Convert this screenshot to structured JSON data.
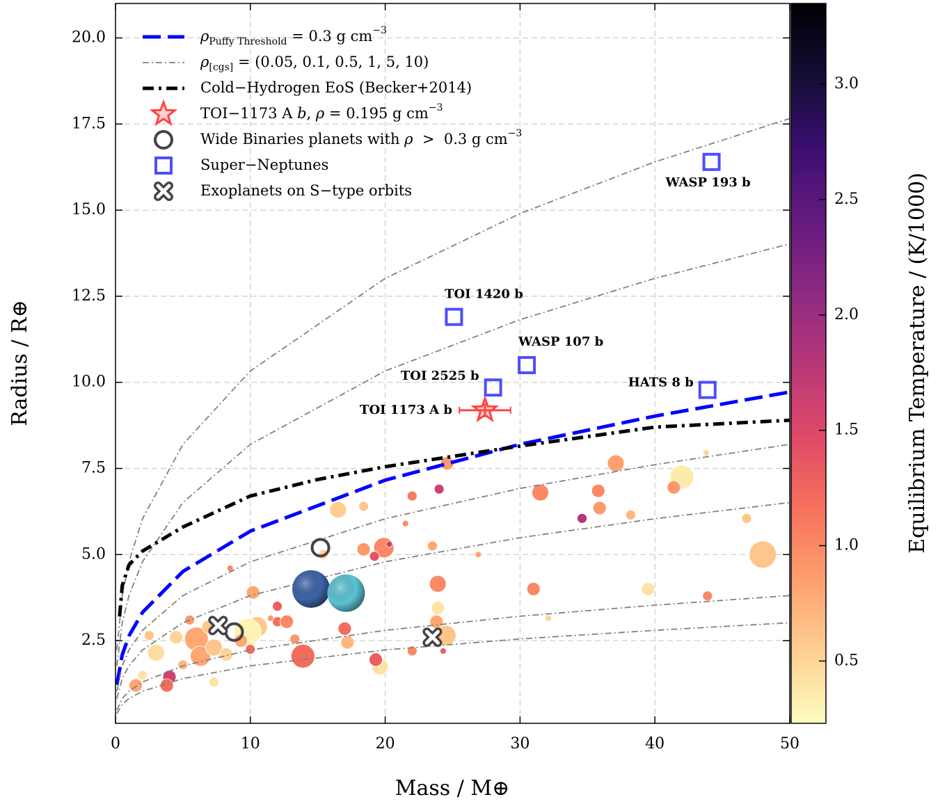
{
  "chart_data": {
    "type": "scatter",
    "xlabel": "Mass / M⊕",
    "ylabel": "Radius / R⊕",
    "xlim": [
      0,
      50
    ],
    "ylim": [
      0.1,
      21
    ],
    "xticks": [
      0,
      10,
      20,
      30,
      40,
      50
    ],
    "yticks": [
      2.5,
      {
        "value": 5,
        "label": "5.0"
      },
      7.5,
      {
        "value": 10,
        "label": "10.0"
      },
      12.5,
      {
        "value": 15,
        "label": "15.0"
      },
      17.5,
      {
        "value": 20,
        "label": "20.0"
      }
    ],
    "grid": true,
    "colorbar": {
      "label": "Equilibrium Temperature / (K/1000)",
      "lim": [
        0.23,
        3.35
      ],
      "ticks": [
        0.5,
        {
          "value": 1,
          "label": "1.0"
        },
        1.5,
        {
          "value": 2,
          "label": "2.0"
        },
        2.5,
        {
          "value": 3,
          "label": "3.0"
        }
      ],
      "colormap": [
        "#fcfdbf",
        "#fecf92",
        "#fe9f6d",
        "#f7705c",
        "#de4968",
        "#b73779",
        "#8c2981",
        "#641a80",
        "#3b0f70",
        "#140e36",
        "#000004"
      ]
    },
    "population": {
      "x": [
        24.6,
        37.1,
        42,
        41.4,
        24,
        22,
        31.5,
        35.8,
        16.5,
        18.4,
        35.9,
        34.6,
        38.2,
        46.8,
        19.9,
        18.4,
        19.2,
        23.5,
        26.9,
        48,
        15.4,
        23.9,
        10.2,
        23.9,
        12,
        31,
        39.5,
        43.9,
        12,
        10.5,
        9.8,
        6.0,
        6.3,
        7.3,
        3.0,
        4.0,
        3.8,
        1.5,
        4.5,
        2.5,
        13.9,
        17.0,
        17.2,
        19.6,
        19.3,
        22.0,
        24.5,
        23.8,
        12.7,
        13.3,
        10.0,
        8.2,
        5.0,
        7.3,
        32.1,
        21.5,
        20.3,
        24.3,
        6.9,
        2.0,
        5.5,
        8.5,
        11.5,
        9.3,
        43.8
      ],
      "values": [
        7.65,
        7.65,
        7.25,
        6.95,
        6.9,
        6.7,
        6.8,
        6.85,
        6.3,
        6.4,
        6.35,
        6.05,
        6.15,
        6.05,
        5.2,
        5.15,
        4.95,
        5.25,
        5.0,
        5.0,
        5.0,
        4.15,
        3.9,
        3.45,
        3.5,
        4.0,
        4.0,
        3.8,
        3.05,
        2.9,
        2.75,
        2.55,
        2.05,
        2.3,
        2.15,
        1.45,
        1.2,
        1.2,
        2.6,
        2.65,
        2.05,
        2.85,
        2.45,
        1.75,
        1.95,
        2.2,
        2.65,
        3.05,
        3.05,
        2.55,
        2.25,
        2.1,
        1.8,
        1.3,
        3.15,
        5.9,
        5.3,
        2.2,
        2.9,
        1.5,
        3.1,
        4.6,
        3.15,
        2.5,
        7.95
      ],
      "teq": [
        0.9,
        0.85,
        0.35,
        0.9,
        1.6,
        1.1,
        1.0,
        1.0,
        0.55,
        0.6,
        0.9,
        1.8,
        0.7,
        0.6,
        1.0,
        0.9,
        1.4,
        0.8,
        0.8,
        0.6,
        0.5,
        1.0,
        0.8,
        0.4,
        1.3,
        1.0,
        0.4,
        1.0,
        1.2,
        0.6,
        0.3,
        0.8,
        0.8,
        0.6,
        0.45,
        1.6,
        1.2,
        0.8,
        0.5,
        0.6,
        1.2,
        1.2,
        0.7,
        0.4,
        1.3,
        1.0,
        0.6,
        0.8,
        1.0,
        0.9,
        1.2,
        0.5,
        0.7,
        0.4,
        0.5,
        1.0,
        1.6,
        1.3,
        0.6,
        0.4,
        0.9,
        1.0,
        0.9,
        0.8,
        0.5
      ],
      "sizes": [
        3,
        4,
        6,
        3,
        2,
        2,
        4,
        3,
        4,
        2,
        3,
        2,
        2,
        2,
        5,
        3,
        2,
        2,
        1,
        7,
        2,
        4,
        3,
        3,
        2,
        3,
        3,
        2,
        2,
        5,
        7,
        6,
        5,
        4,
        4,
        3,
        3,
        3,
        3,
        2,
        6,
        3,
        3,
        4,
        3,
        2,
        5,
        3,
        3,
        2,
        2,
        3,
        2,
        2,
        1,
        1,
        1,
        1,
        3,
        2,
        2,
        1,
        1,
        3,
        1
      ]
    },
    "solar_system": {
      "x": [
        14.5,
        17.1
      ],
      "values": [
        4.0,
        3.88
      ],
      "colors": [
        "#3d64a8",
        "#5cc3d4"
      ]
    },
    "series": [
      {
        "kind": "line",
        "style": "dashed",
        "color": "#0000ff",
        "label_parts": [
          {
            "text": "ρ",
            "style": "italic"
          },
          {
            "text": "Puffy Threshold",
            "style": "sub"
          },
          {
            "text": " = 0.3 g cm"
          },
          {
            "text": "−3",
            "style": "sup"
          }
        ],
        "x": [
          0.1,
          0.5,
          1,
          2,
          5,
          10,
          20,
          30,
          40,
          50
        ],
        "values": [
          1.22,
          2.09,
          2.64,
          3.32,
          4.51,
          5.68,
          7.16,
          8.2,
          9.02,
          9.72
        ]
      },
      {
        "kind": "line-group",
        "style": "dashdot",
        "color": "#808080",
        "label_parts": [
          {
            "text": "ρ",
            "style": "italic"
          },
          {
            "text": "[cgs]",
            "style": "sub"
          },
          {
            "text": " = (0.05, 0.1, 0.5, 1, 5, 10)"
          }
        ],
        "x": [
          0.1,
          0.5,
          1,
          2,
          5,
          10,
          20,
          30,
          40,
          50
        ],
        "values_list": [
          [
            2.23,
            3.81,
            4.79,
            6.04,
            8.2,
            10.33,
            13.02,
            14.9,
            16.4,
            17.66
          ],
          [
            1.77,
            3.02,
            3.81,
            4.79,
            6.51,
            8.2,
            10.33,
            11.82,
            13.02,
            14.02
          ],
          [
            1.03,
            1.77,
            2.23,
            2.8,
            3.81,
            4.79,
            6.04,
            6.92,
            7.61,
            8.2
          ],
          [
            0.82,
            1.4,
            1.77,
            2.23,
            3.02,
            3.81,
            4.79,
            5.49,
            6.04,
            6.51
          ],
          [
            0.48,
            0.82,
            1.03,
            1.3,
            1.77,
            2.23,
            2.8,
            3.21,
            3.53,
            3.81
          ],
          [
            0.38,
            0.65,
            0.82,
            1.03,
            1.4,
            1.77,
            2.23,
            2.55,
            2.8,
            3.02
          ]
        ]
      },
      {
        "kind": "line",
        "style": "dashdot-bold",
        "color": "#000000",
        "label_parts": [
          {
            "text": "Cold−Hydrogen EoS (Becker+2014)"
          }
        ],
        "x": [
          0.3,
          0.5,
          1,
          2,
          5,
          10,
          15,
          20,
          30,
          40,
          50
        ],
        "values": [
          3.2,
          4.1,
          4.7,
          5.1,
          5.8,
          6.7,
          7.18,
          7.55,
          8.15,
          8.7,
          8.9
        ]
      },
      {
        "kind": "star",
        "color": "#ff4444",
        "label_parts": [
          {
            "text": "TOI−1173 A "
          },
          {
            "text": "b",
            "style": "italic"
          },
          {
            "text": ", "
          },
          {
            "text": "ρ",
            "style": "italic"
          },
          {
            "text": " = 0.195 g cm"
          },
          {
            "text": "−3",
            "style": "sup"
          }
        ],
        "x": [
          27.4
        ],
        "values": [
          9.19
        ],
        "x_err": [
          1.9
        ],
        "y_err": [
          0.2
        ],
        "point_labels": [
          "TOI 1173 A b"
        ],
        "label_color": "#ff0000"
      },
      {
        "kind": "circle",
        "color": "#444444",
        "label_parts": [
          {
            "text": "Wide Binaries planets with "
          },
          {
            "text": "ρ",
            "style": "italic"
          },
          {
            "text": "  >  0.3 g cm"
          },
          {
            "text": "−3",
            "style": "sup"
          }
        ],
        "x": [
          15.2,
          8.8
        ],
        "values": [
          5.2,
          2.75
        ]
      },
      {
        "kind": "square",
        "color": "#4d4dff",
        "label_parts": [
          {
            "text": "Super−Neptunes"
          }
        ],
        "x": [
          44.2,
          25.1,
          30.5,
          28.0,
          43.9
        ],
        "values": [
          16.4,
          11.9,
          10.5,
          9.85,
          9.78
        ],
        "point_labels": [
          "WASP 193 b",
          "TOI 1420 b",
          "WASP 107 b",
          "TOI 2525 b",
          "HATS 8 b"
        ],
        "label_color": "#2e7ebc"
      },
      {
        "kind": "cross",
        "color": "#444444",
        "label_parts": [
          {
            "text": "Exoplanets on S−type orbits"
          }
        ],
        "x": [
          7.6,
          23.5
        ],
        "values": [
          2.94,
          2.6
        ]
      }
    ]
  }
}
